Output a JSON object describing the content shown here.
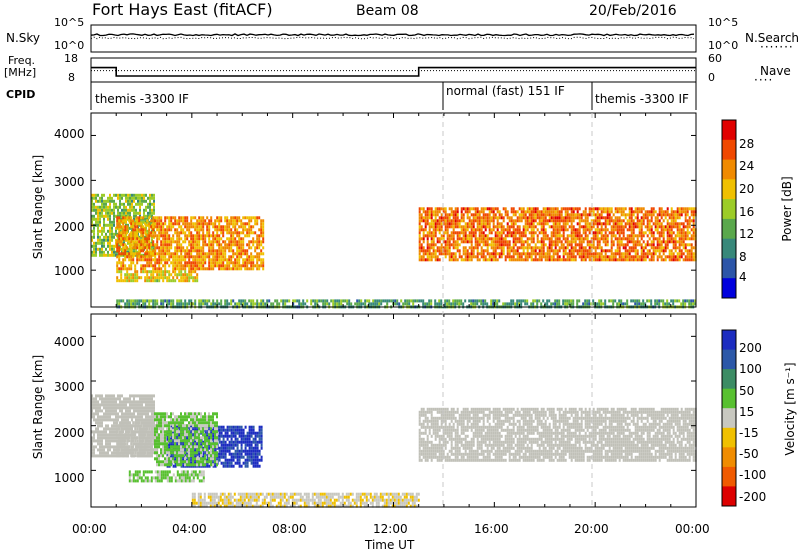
{
  "header": {
    "station": "Fort Hays East (fitACF)",
    "beam": "Beam 08",
    "date": "20/Feb/2016"
  },
  "noise_panel": {
    "left_label": "N.Sky",
    "right_label": "N.Search",
    "left_ticks": [
      "10^5",
      "10^0"
    ],
    "right_ticks": [
      "10^5",
      "10^0"
    ]
  },
  "freq_panel": {
    "left_label_1": "Freq.",
    "left_label_2": "[MHz]",
    "right_label": "Nave",
    "left_ticks": [
      "18",
      "8"
    ],
    "right_ticks": [
      "60",
      "0"
    ]
  },
  "cpid_panel": {
    "label": "CPID",
    "segments": [
      {
        "label": "themis -3300 IF",
        "start": "00:00",
        "end": "14:00"
      },
      {
        "label": "normal (fast) 151 IF",
        "start": "14:00",
        "end": "20:00"
      },
      {
        "label": "themis -3300 IF",
        "start": "20:00",
        "end": "24:00"
      }
    ]
  },
  "x_axis": {
    "title": "Time UT",
    "ticks": [
      "00:00",
      "04:00",
      "08:00",
      "12:00",
      "16:00",
      "20:00",
      "00:00"
    ]
  },
  "power_panel": {
    "ylabel": "Slant Range [km]",
    "yticks": [
      "4000",
      "3000",
      "2000",
      "1000"
    ],
    "colorbar_title": "Power [dB]",
    "colorbar_ticks": [
      "28",
      "24",
      "20",
      "16",
      "12",
      "8",
      "4"
    ]
  },
  "velocity_panel": {
    "ylabel": "Slant Range [km]",
    "yticks": [
      "4000",
      "3000",
      "2000",
      "1000"
    ],
    "colorbar_title": "Velocity [m s⁻¹]",
    "colorbar_ticks": [
      "200",
      "100",
      "50",
      "15",
      "-15",
      "-50",
      "-100",
      "-200"
    ]
  },
  "colors": {
    "power_scale": [
      "#0000dd",
      "#2c55a8",
      "#38887a",
      "#5aa84c",
      "#9ccc28",
      "#f0c000",
      "#f08a00",
      "#f04800",
      "#e00000"
    ],
    "velocity_scale": [
      "#dd0000",
      "#f05a00",
      "#f08c00",
      "#f0c000",
      "#c8c8c0",
      "#58c030",
      "#3c8c64",
      "#2c58a8",
      "#1c2cc0"
    ],
    "ground_scatter": "#c0c0b8"
  },
  "chart_data": [
    {
      "type": "line",
      "title": "Noise: N.Sky / N.Search",
      "x_range": [
        "00:00",
        "24:00"
      ],
      "series": [
        {
          "name": "N.Sky",
          "y_log10_approx": 3.2
        },
        {
          "name": "N.Search",
          "y_log10_approx": 2.6
        }
      ]
    },
    {
      "type": "line",
      "title": "Freq. [MHz] and Nave",
      "series": [
        {
          "name": "Freq. [MHz]",
          "x": [
            "00:00",
            "01:00",
            "01:00",
            "13:00",
            "13:00",
            "24:00"
          ],
          "values": [
            14,
            14,
            10.5,
            10.5,
            14,
            14
          ]
        },
        {
          "name": "Nave",
          "x": [
            "00:00",
            "24:00"
          ],
          "values": [
            14,
            14
          ]
        }
      ],
      "ylim": [
        8,
        18
      ]
    },
    {
      "type": "heatmap",
      "title": "Power [dB]",
      "xlabel": "Time UT",
      "ylabel": "Slant Range [km]",
      "x_range_hours": [
        0,
        24
      ],
      "ylim": [
        180,
        4500
      ],
      "colorbar_range": [
        0,
        30
      ],
      "regions": [
        {
          "t_start": 0.0,
          "t_end": 2.5,
          "range_low": 1300,
          "range_high": 2700,
          "power_db": 14
        },
        {
          "t_start": 1.0,
          "t_end": 6.8,
          "range_low": 1000,
          "range_high": 2200,
          "power_db": 22
        },
        {
          "t_start": 1.0,
          "t_end": 4.2,
          "range_low": 750,
          "range_high": 1000,
          "power_db": 18
        },
        {
          "t_start": 13.0,
          "t_end": 24.0,
          "range_low": 1200,
          "range_high": 2400,
          "power_db": 24
        },
        {
          "t_start": 1.0,
          "t_end": 24.0,
          "range_low": 180,
          "range_high": 350,
          "power_db": 10
        }
      ]
    },
    {
      "type": "heatmap",
      "title": "Velocity [m s⁻¹]",
      "xlabel": "Time UT",
      "ylabel": "Slant Range [km]",
      "x_range_hours": [
        0,
        24
      ],
      "ylim": [
        180,
        4500
      ],
      "colorbar_range": [
        -200,
        200
      ],
      "regions": [
        {
          "t_start": 0.0,
          "t_end": 2.5,
          "range_low": 1300,
          "range_high": 2700,
          "velocity": 0,
          "ground_scatter": true
        },
        {
          "t_start": 1.0,
          "t_end": 4.2,
          "range_low": 1300,
          "range_high": 2100,
          "velocity": 0,
          "ground_scatter": true
        },
        {
          "t_start": 3.0,
          "t_end": 6.8,
          "range_low": 1100,
          "range_high": 2000,
          "velocity": 180
        },
        {
          "t_start": 2.5,
          "t_end": 5.0,
          "range_low": 1100,
          "range_high": 2300,
          "velocity": 30
        },
        {
          "t_start": 1.5,
          "t_end": 4.5,
          "range_low": 750,
          "range_high": 1000,
          "velocity": 30
        },
        {
          "t_start": 13.0,
          "t_end": 24.0,
          "range_low": 1200,
          "range_high": 2400,
          "velocity": 0,
          "ground_scatter": true
        },
        {
          "t_start": 4.0,
          "t_end": 13.0,
          "range_low": 180,
          "range_high": 500,
          "velocity": -20
        }
      ]
    }
  ]
}
